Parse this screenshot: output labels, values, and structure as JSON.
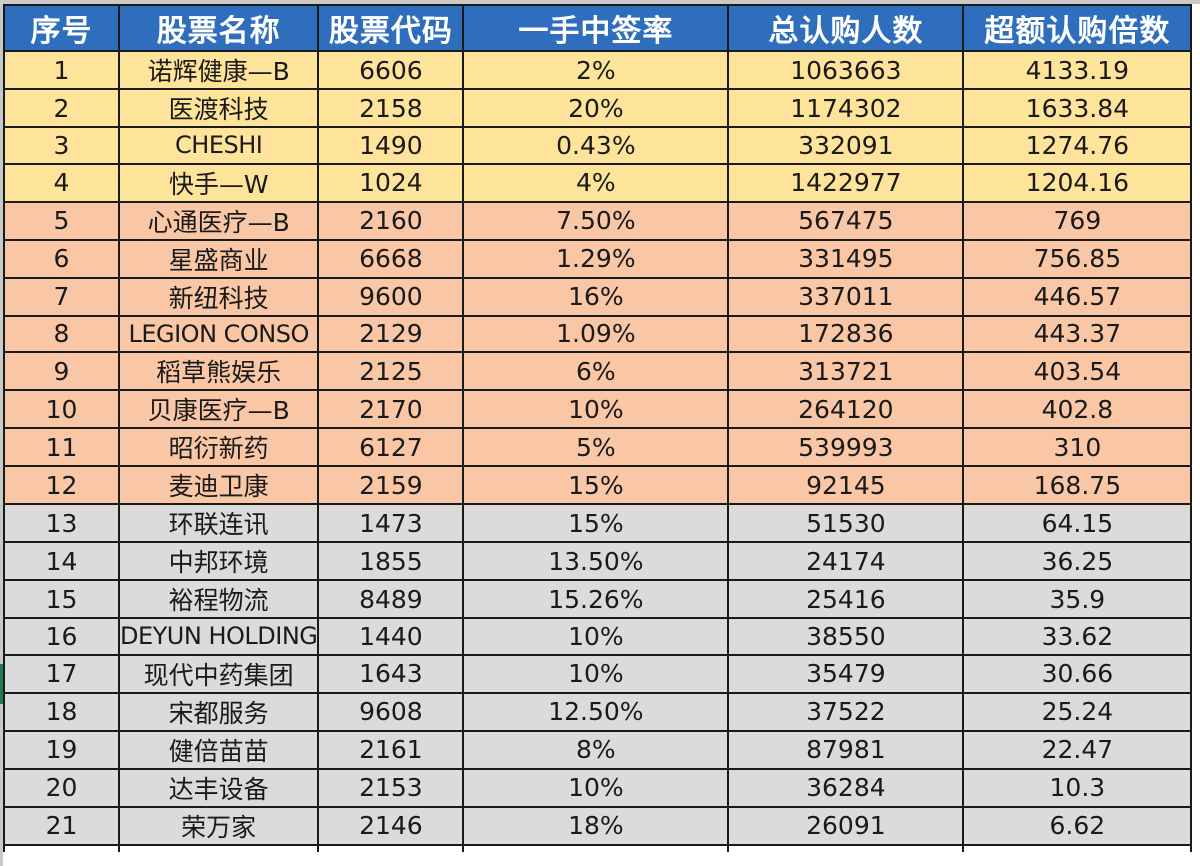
{
  "table": {
    "headers": [
      "序号",
      "股票名称",
      "股票代码",
      "一手中签率",
      "总认购人数",
      "超额认购倍数"
    ],
    "colors": {
      "header_bg": "#2f6ebd",
      "header_text": "#ffffff",
      "tier_gold": "#fde49a",
      "tier_salmon": "#f9c6a6",
      "tier_gray": "#dcdbdc"
    },
    "rows": [
      {
        "no": "1",
        "name": "诺辉健康—B",
        "code": "6606",
        "rate": "2%",
        "subscribers": "1063663",
        "oversub": "4133.19",
        "tier": "gold"
      },
      {
        "no": "2",
        "name": "医渡科技",
        "code": "2158",
        "rate": "20%",
        "subscribers": "1174302",
        "oversub": "1633.84",
        "tier": "gold"
      },
      {
        "no": "3",
        "name": "CHESHI",
        "code": "1490",
        "rate": "0.43%",
        "subscribers": "332091",
        "oversub": "1274.76",
        "tier": "gold"
      },
      {
        "no": "4",
        "name": "快手—W",
        "code": "1024",
        "rate": "4%",
        "subscribers": "1422977",
        "oversub": "1204.16",
        "tier": "gold"
      },
      {
        "no": "5",
        "name": "心通医疗—B",
        "code": "2160",
        "rate": "7.50%",
        "subscribers": "567475",
        "oversub": "769",
        "tier": "salmon"
      },
      {
        "no": "6",
        "name": "星盛商业",
        "code": "6668",
        "rate": "1.29%",
        "subscribers": "331495",
        "oversub": "756.85",
        "tier": "salmon"
      },
      {
        "no": "7",
        "name": "新纽科技",
        "code": "9600",
        "rate": "16%",
        "subscribers": "337011",
        "oversub": "446.57",
        "tier": "salmon"
      },
      {
        "no": "8",
        "name": "LEGION CONSO",
        "code": "2129",
        "rate": "1.09%",
        "subscribers": "172836",
        "oversub": "443.37",
        "tier": "salmon"
      },
      {
        "no": "9",
        "name": "稻草熊娱乐",
        "code": "2125",
        "rate": "6%",
        "subscribers": "313721",
        "oversub": "403.54",
        "tier": "salmon"
      },
      {
        "no": "10",
        "name": "贝康医疗—B",
        "code": "2170",
        "rate": "10%",
        "subscribers": "264120",
        "oversub": "402.8",
        "tier": "salmon"
      },
      {
        "no": "11",
        "name": "昭衍新药",
        "code": "6127",
        "rate": "5%",
        "subscribers": "539993",
        "oversub": "310",
        "tier": "salmon"
      },
      {
        "no": "12",
        "name": "麦迪卫康",
        "code": "2159",
        "rate": "15%",
        "subscribers": "92145",
        "oversub": "168.75",
        "tier": "salmon"
      },
      {
        "no": "13",
        "name": "环联连讯",
        "code": "1473",
        "rate": "15%",
        "subscribers": "51530",
        "oversub": "64.15",
        "tier": "gray"
      },
      {
        "no": "14",
        "name": "中邦环境",
        "code": "1855",
        "rate": "13.50%",
        "subscribers": "24174",
        "oversub": "36.25",
        "tier": "gray"
      },
      {
        "no": "15",
        "name": "裕程物流",
        "code": "8489",
        "rate": "15.26%",
        "subscribers": "25416",
        "oversub": "35.9",
        "tier": "gray"
      },
      {
        "no": "16",
        "name": "DEYUN HOLDING",
        "code": "1440",
        "rate": "10%",
        "subscribers": "38550",
        "oversub": "33.62",
        "tier": "gray"
      },
      {
        "no": "17",
        "name": "现代中药集团",
        "code": "1643",
        "rate": "10%",
        "subscribers": "35479",
        "oversub": "30.66",
        "tier": "gray"
      },
      {
        "no": "18",
        "name": "宋都服务",
        "code": "9608",
        "rate": "12.50%",
        "subscribers": "37522",
        "oversub": "25.24",
        "tier": "gray"
      },
      {
        "no": "19",
        "name": "健倍苗苗",
        "code": "2161",
        "rate": "8%",
        "subscribers": "87981",
        "oversub": "22.47",
        "tier": "gray"
      },
      {
        "no": "20",
        "name": "达丰设备",
        "code": "2153",
        "rate": "10%",
        "subscribers": "36284",
        "oversub": "10.3",
        "tier": "gray"
      },
      {
        "no": "21",
        "name": "荣万家",
        "code": "2146",
        "rate": "18%",
        "subscribers": "26091",
        "oversub": "6.62",
        "tier": "gray"
      }
    ]
  }
}
